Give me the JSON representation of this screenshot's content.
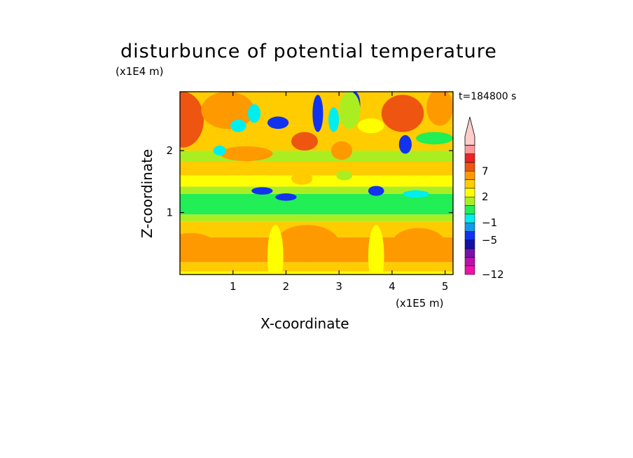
{
  "chart_data": {
    "type": "heatmap",
    "title": "disturbunce of potential temperature",
    "xlabel": "X-coordinate",
    "ylabel": "Z-coordinate",
    "x_unit": "(x1E5 m)",
    "y_unit": "(x1E4 m)",
    "time_label": "t=184800 s",
    "xlim": [
      0,
      5.15
    ],
    "ylim": [
      0,
      2.95
    ],
    "x_ticks": [
      "1",
      "2",
      "3",
      "4",
      "5"
    ],
    "y_ticks": [
      "1",
      "2"
    ],
    "colorbar": {
      "levels": [
        -12,
        -11,
        -9,
        -7,
        -5,
        -3,
        -1,
        0,
        1,
        2,
        3,
        5,
        7,
        9,
        11
      ],
      "tick_labels": [
        "-12",
        "-5",
        "-1",
        "2",
        "7"
      ],
      "colors": [
        "#ee11aa",
        "#bb11aa",
        "#7711aa",
        "#1111aa",
        "#1133ee",
        "#1199ee",
        "#00eeee",
        "#22ee55",
        "#aaee22",
        "#ffff00",
        "#ffcc00",
        "#ff9900",
        "#ee5511",
        "#ee2222",
        "#ff9999",
        "#ffcccc"
      ],
      "extend": "max"
    },
    "bands": [
      {
        "z0": 0.0,
        "z1": 0.05,
        "value": 1.0
      },
      {
        "z0": 0.05,
        "z1": 0.2,
        "value": 2.0
      },
      {
        "z0": 0.2,
        "z1": 0.6,
        "value": 3.0
      },
      {
        "z0": 0.6,
        "z1": 0.85,
        "value": 2.0
      },
      {
        "z0": 0.85,
        "z1": 0.97,
        "value": 0.5
      },
      {
        "z0": 0.97,
        "z1": 1.3,
        "value": -0.5
      },
      {
        "z0": 1.3,
        "z1": 1.42,
        "value": 0.5
      },
      {
        "z0": 1.42,
        "z1": 1.6,
        "value": 1.0
      },
      {
        "z0": 1.6,
        "z1": 1.82,
        "value": 2.0
      },
      {
        "z0": 1.82,
        "z1": 2.0,
        "value": 0.5
      },
      {
        "z0": 2.0,
        "z1": 2.4,
        "value": 2.0
      },
      {
        "z0": 2.4,
        "z1": 2.95,
        "value": 2.5
      }
    ],
    "features": [
      {
        "x": 0.05,
        "z": 2.5,
        "rx": 0.4,
        "rz": 0.45,
        "value": 5
      },
      {
        "x": 0.2,
        "z": 0.45,
        "rx": 0.5,
        "rz": 0.22,
        "value": 3.5
      },
      {
        "x": 0.9,
        "z": 2.65,
        "rx": 0.5,
        "rz": 0.3,
        "value": 3.5
      },
      {
        "x": 1.25,
        "z": 1.95,
        "rx": 0.5,
        "rz": 0.12,
        "value": 4
      },
      {
        "x": 1.1,
        "z": 2.4,
        "rx": 0.15,
        "rz": 0.1,
        "value": -2
      },
      {
        "x": 1.4,
        "z": 2.6,
        "rx": 0.12,
        "rz": 0.15,
        "value": -3
      },
      {
        "x": 1.85,
        "z": 2.45,
        "rx": 0.2,
        "rz": 0.1,
        "value": -6
      },
      {
        "x": 0.75,
        "z": 2.0,
        "rx": 0.12,
        "rz": 0.08,
        "value": -2
      },
      {
        "x": 1.55,
        "z": 1.35,
        "rx": 0.2,
        "rz": 0.06,
        "value": -6
      },
      {
        "x": 2.0,
        "z": 1.25,
        "rx": 0.2,
        "rz": 0.06,
        "value": -6
      },
      {
        "x": 2.35,
        "z": 2.15,
        "rx": 0.25,
        "rz": 0.15,
        "value": 5
      },
      {
        "x": 2.6,
        "z": 2.6,
        "rx": 0.1,
        "rz": 0.3,
        "value": -6
      },
      {
        "x": 2.9,
        "z": 2.5,
        "rx": 0.1,
        "rz": 0.2,
        "value": -3
      },
      {
        "x": 3.05,
        "z": 2.0,
        "rx": 0.2,
        "rz": 0.15,
        "value": 3.5
      },
      {
        "x": 3.3,
        "z": 2.75,
        "rx": 0.1,
        "rz": 0.2,
        "value": -6
      },
      {
        "x": 3.6,
        "z": 2.4,
        "rx": 0.25,
        "rz": 0.12,
        "value": 1
      },
      {
        "x": 3.7,
        "z": 1.35,
        "rx": 0.15,
        "rz": 0.08,
        "value": -6
      },
      {
        "x": 4.2,
        "z": 2.6,
        "rx": 0.4,
        "rz": 0.3,
        "value": 5
      },
      {
        "x": 4.25,
        "z": 2.1,
        "rx": 0.12,
        "rz": 0.15,
        "value": -6
      },
      {
        "x": 3.2,
        "z": 2.65,
        "rx": 0.2,
        "rz": 0.3,
        "value": 0.5
      },
      {
        "x": 4.9,
        "z": 2.7,
        "rx": 0.25,
        "rz": 0.3,
        "value": 4
      },
      {
        "x": 4.8,
        "z": 2.2,
        "rx": 0.35,
        "rz": 0.1,
        "value": -0.5
      },
      {
        "x": 4.45,
        "z": 1.3,
        "rx": 0.25,
        "rz": 0.06,
        "value": -3
      },
      {
        "x": 2.4,
        "z": 0.5,
        "rx": 0.6,
        "rz": 0.3,
        "value": 3.5
      },
      {
        "x": 4.5,
        "z": 0.5,
        "rx": 0.5,
        "rz": 0.25,
        "value": 3.5
      },
      {
        "x": 1.8,
        "z": 0.3,
        "rx": 0.15,
        "rz": 0.5,
        "value": 1.0
      },
      {
        "x": 3.7,
        "z": 0.3,
        "rx": 0.15,
        "rz": 0.5,
        "value": 1.0
      },
      {
        "x": 2.3,
        "z": 1.55,
        "rx": 0.2,
        "rz": 0.1,
        "value": 2.5
      },
      {
        "x": 3.1,
        "z": 1.6,
        "rx": 0.15,
        "rz": 0.08,
        "value": 0.5
      }
    ]
  }
}
